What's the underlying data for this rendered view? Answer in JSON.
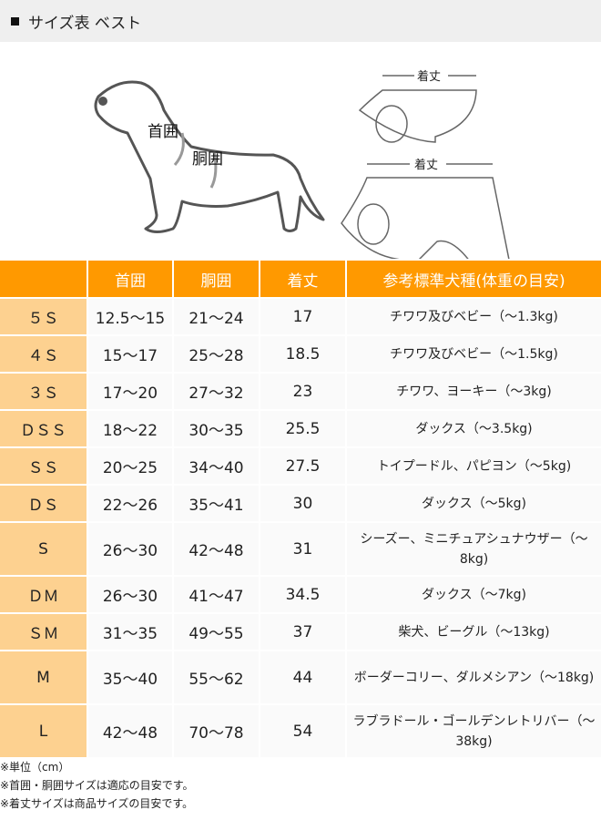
{
  "title": "サイズ表 ベスト",
  "illustration": {
    "neck_label": "首囲",
    "chest_label": "胴囲",
    "length_label": "着丈"
  },
  "table": {
    "headers": [
      "",
      "首囲",
      "胴囲",
      "着丈",
      "参考標準犬種(体重の目安)"
    ],
    "rows": [
      {
        "size": "５Ｓ",
        "neck": "12.5～15",
        "chest": "21～24",
        "length": "17",
        "breed": "チワワ及びベビー（～1.3kg)"
      },
      {
        "size": "４Ｓ",
        "neck": "15～17",
        "chest": "25～28",
        "length": "18.5",
        "breed": "チワワ及びベビー（～1.5kg)"
      },
      {
        "size": "３Ｓ",
        "neck": "17～20",
        "chest": "27～32",
        "length": "23",
        "breed": "チワワ、ヨーキー（～3kg)"
      },
      {
        "size": "ＤＳＳ",
        "neck": "18～22",
        "chest": "30～35",
        "length": "25.5",
        "breed": "ダックス（～3.5kg)"
      },
      {
        "size": "ＳＳ",
        "neck": "20～25",
        "chest": "34～40",
        "length": "27.5",
        "breed": "トイプードル、パピヨン（～5kg)"
      },
      {
        "size": "ＤＳ",
        "neck": "22～26",
        "chest": "35～41",
        "length": "30",
        "breed": "ダックス（～5kg)"
      },
      {
        "size": "S",
        "neck": "26～30",
        "chest": "42～48",
        "length": "31",
        "breed": "シーズー、ミニチュアシュナウザー（～8kg)"
      },
      {
        "size": "ＤＭ",
        "neck": "26～30",
        "chest": "41～47",
        "length": "34.5",
        "breed": "ダックス（～7kg)"
      },
      {
        "size": "ＳＭ",
        "neck": "31～35",
        "chest": "49～55",
        "length": "37",
        "breed": "柴犬、ビーグル（～13kg)"
      },
      {
        "size": "M",
        "neck": "35～40",
        "chest": "55～62",
        "length": "44",
        "breed": "ボーダーコリー、ダルメシアン（～18kg)"
      },
      {
        "size": "L",
        "neck": "42～48",
        "chest": "70～78",
        "length": "54",
        "breed": "ラブラドール・ゴールデンレトリバー（～38kg)"
      }
    ]
  },
  "notes": [
    "※単位（cm）",
    "※首囲・胴囲サイズは適応の目安です。",
    "※着丈サイズは商品サイズの目安です。"
  ],
  "colors": {
    "header": "#ff9900",
    "size_cell": "#fdd190",
    "title_bar": "#efefef"
  }
}
